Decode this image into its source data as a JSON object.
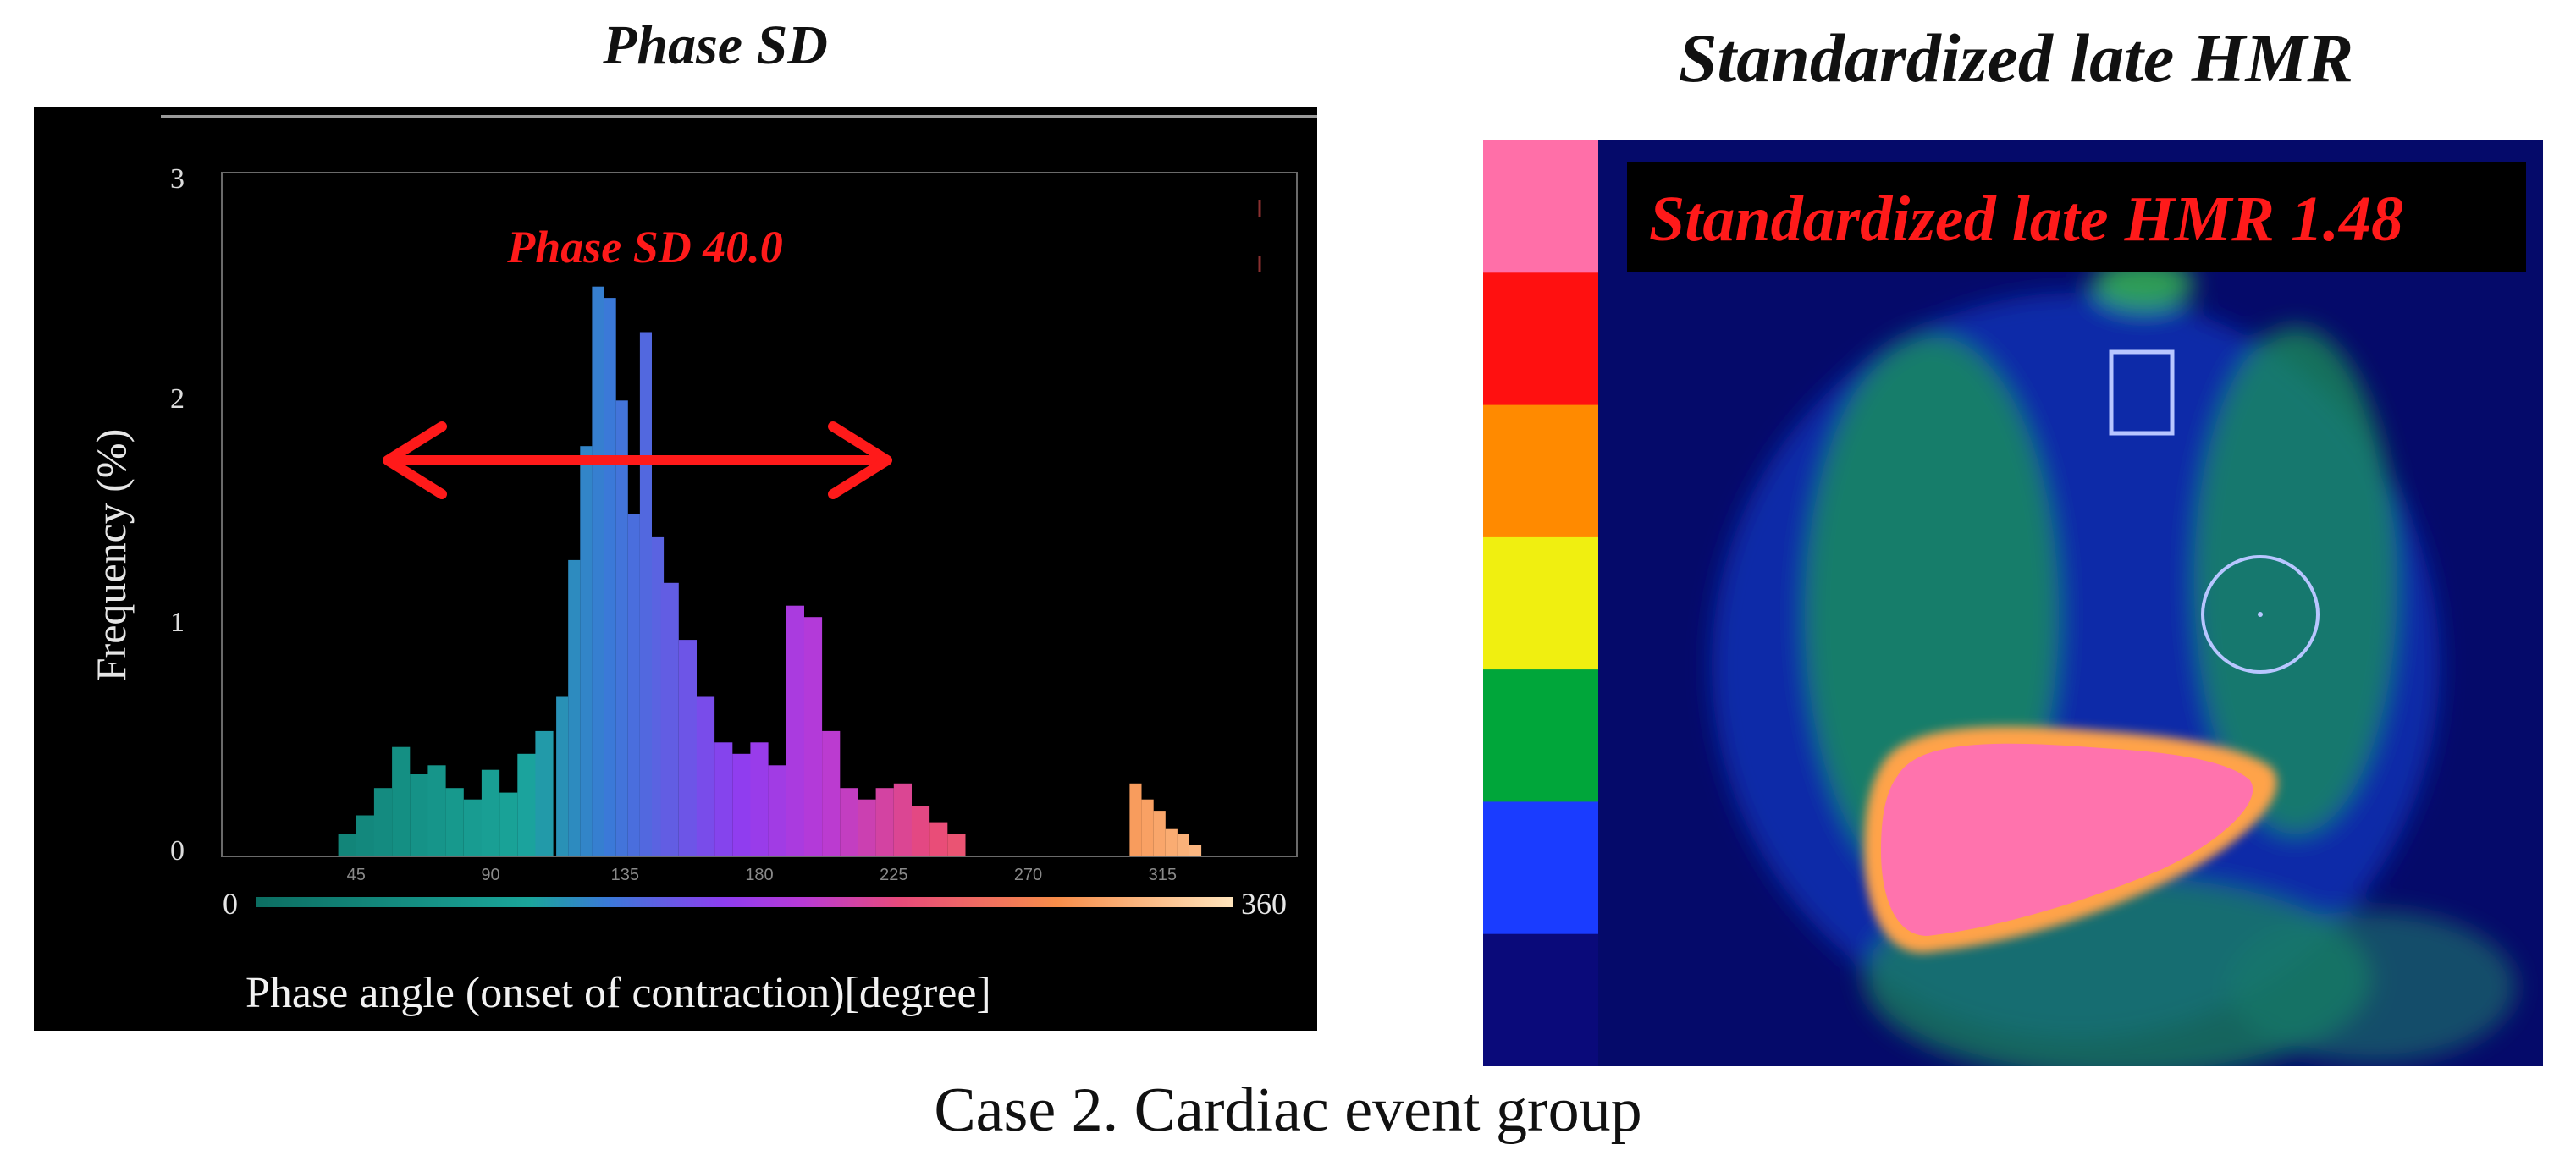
{
  "left_panel_title": "Phase SD",
  "right_panel_title": "Standardized late HMR",
  "caption": "Case 2. Cardiac event group",
  "chart_data": {
    "type": "bar",
    "title": "Phase SD",
    "xlabel": "Phase angle (onset of contraction)[degree]",
    "ylabel": "Frequency (%)",
    "xlim": [
      0,
      360
    ],
    "ylim": [
      0,
      3
    ],
    "x_ticks": [
      "45",
      "90",
      "135",
      "180",
      "225",
      "270",
      "315"
    ],
    "y_ticks": [
      "0",
      "1",
      "2",
      "3"
    ],
    "colorbar_min_label": "0",
    "colorbar_max_label": "360",
    "annotation": "Phase SD 40.0",
    "bin_centers": [
      42,
      48,
      54,
      60,
      66,
      72,
      78,
      84,
      90,
      96,
      102,
      108,
      114,
      118,
      122,
      126,
      130,
      134,
      138,
      142,
      146,
      150,
      156,
      162,
      168,
      174,
      180,
      186,
      192,
      198,
      204,
      210,
      216,
      222,
      228,
      234,
      240,
      246,
      306,
      310,
      314,
      318,
      322,
      326
    ],
    "values": [
      0.1,
      0.18,
      0.3,
      0.48,
      0.36,
      0.4,
      0.3,
      0.25,
      0.38,
      0.28,
      0.45,
      0.55,
      0.7,
      1.3,
      1.8,
      2.5,
      2.45,
      2.0,
      1.5,
      2.3,
      1.4,
      1.2,
      0.95,
      0.7,
      0.5,
      0.45,
      0.5,
      0.4,
      1.1,
      1.05,
      0.55,
      0.3,
      0.25,
      0.3,
      0.32,
      0.22,
      0.15,
      0.1,
      0.32,
      0.25,
      0.2,
      0.12,
      0.1,
      0.05
    ]
  },
  "scan_image": {
    "hmr_label": "Standardized late HMR 1.48",
    "color_scale": [
      "#0a0a7a",
      "#1a3cff",
      "#00a63a",
      "#f0ef10",
      "#ff8a00",
      "#ff1010",
      "#ff6fa8"
    ]
  }
}
